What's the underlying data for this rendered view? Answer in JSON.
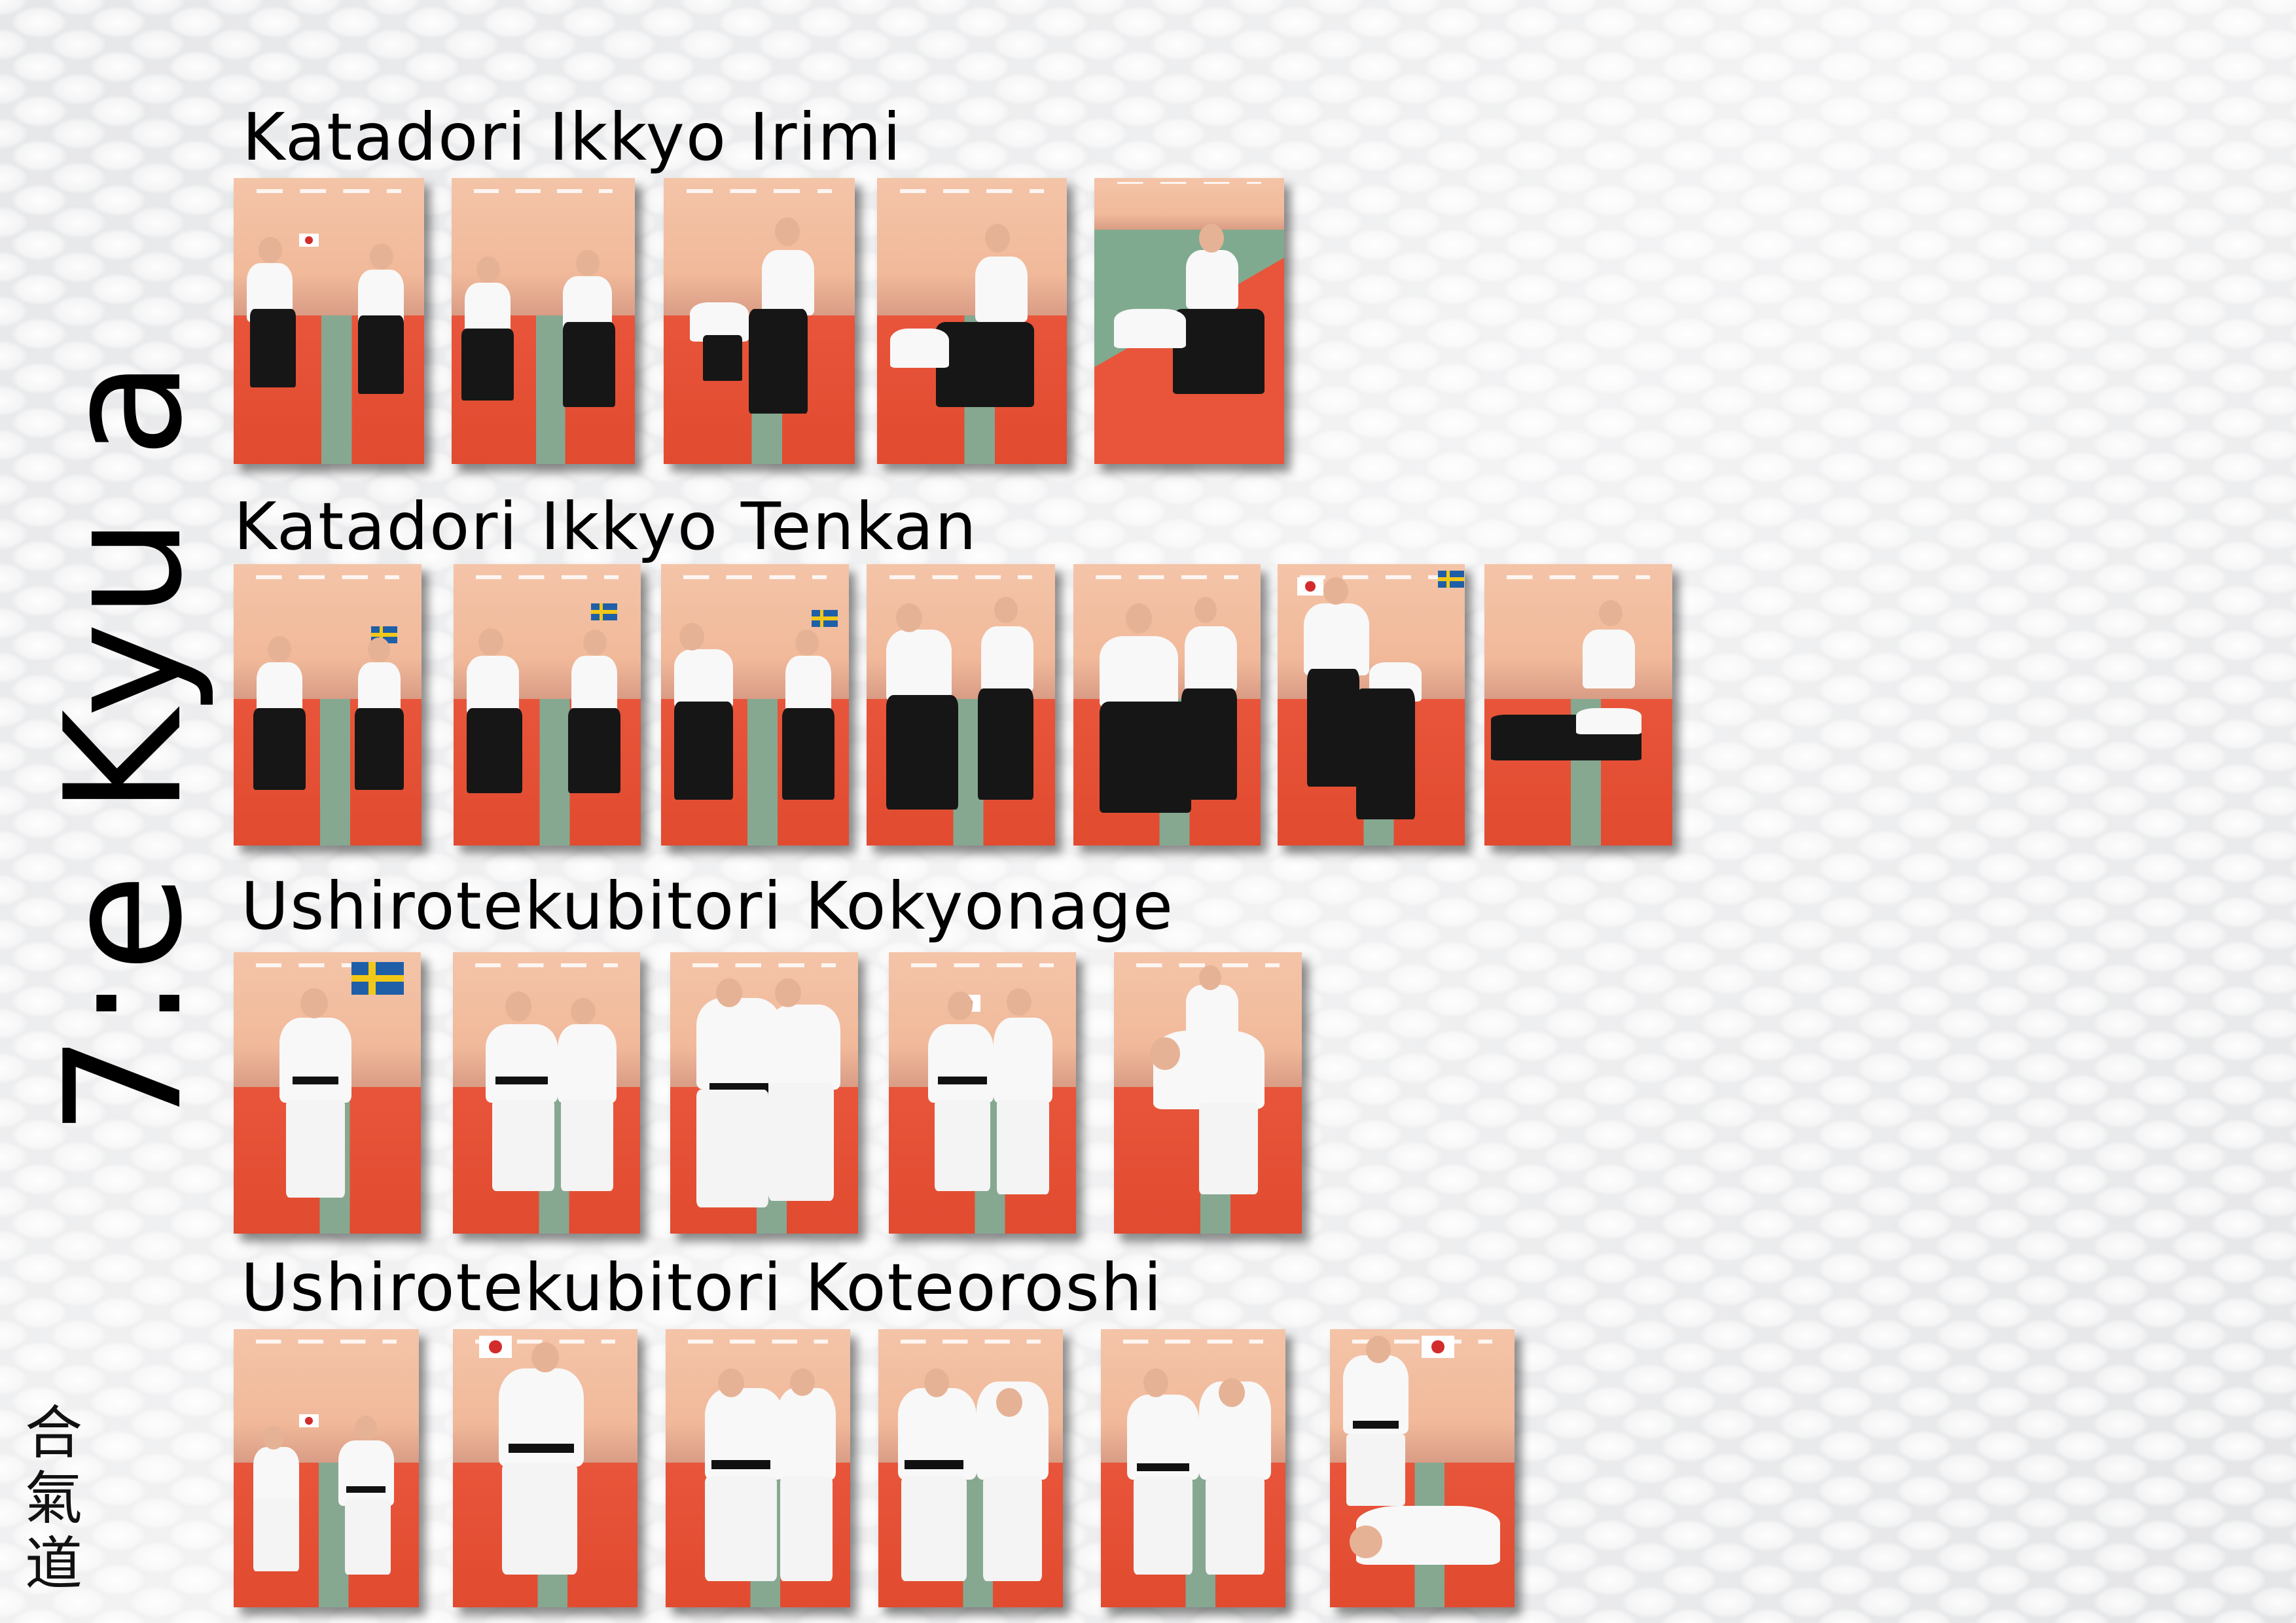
{
  "side_title": "7:e Kyu a",
  "kanji": [
    "合",
    "氣",
    "道"
  ],
  "techniques": [
    {
      "name": "Katadori Ikkyo Irimi",
      "photo_count": 5
    },
    {
      "name": "Katadori Ikkyo Tenkan",
      "photo_count": 7
    },
    {
      "name": "Ushirotekubitori Kokyonage",
      "photo_count": 5
    },
    {
      "name": "Ushirotekubitori Koteoroshi",
      "photo_count": 6
    }
  ],
  "colors": {
    "mat_red": "#e8553a",
    "mat_green": "#86a891",
    "wall": "#f1b99a",
    "hakama": "#161616",
    "gi": "#f8f8f8"
  }
}
